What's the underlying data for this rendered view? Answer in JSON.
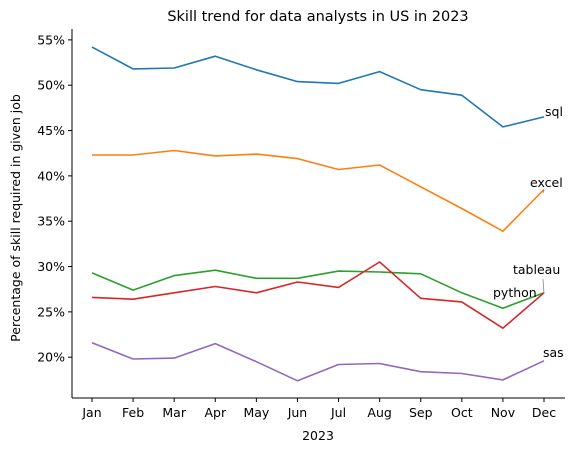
{
  "chart_data": {
    "type": "line",
    "title": "Skill trend for data analysts in US in 2023",
    "xlabel": "2023",
    "ylabel": "Percentage of skill required in given job",
    "categories": [
      "Jan",
      "Feb",
      "Mar",
      "Apr",
      "May",
      "Jun",
      "Jul",
      "Aug",
      "Sep",
      "Oct",
      "Nov",
      "Dec"
    ],
    "ylim": [
      15.5,
      56.2
    ],
    "yticks": [
      20,
      25,
      30,
      35,
      40,
      45,
      50,
      55
    ],
    "ytick_labels": [
      "20%",
      "25%",
      "30%",
      "35%",
      "40%",
      "45%",
      "50%",
      "55%"
    ],
    "grid": false,
    "legend": "none",
    "series": [
      {
        "name": "sql",
        "color": "#1f77b4",
        "values": [
          54.2,
          51.8,
          51.9,
          53.2,
          51.7,
          50.4,
          50.2,
          51.5,
          49.5,
          48.9,
          45.4,
          46.5
        ]
      },
      {
        "name": "excel",
        "color": "#ff7f0e",
        "values": [
          42.3,
          42.3,
          42.8,
          42.2,
          42.4,
          41.9,
          40.7,
          41.2,
          38.8,
          36.4,
          33.9,
          38.5
        ]
      },
      {
        "name": "tableau",
        "color": "#2ca02c",
        "values": [
          29.3,
          27.4,
          29.0,
          29.6,
          28.7,
          28.7,
          29.5,
          29.4,
          29.2,
          27.1,
          25.4,
          27.1
        ]
      },
      {
        "name": "python",
        "color": "#d62728",
        "values": [
          26.6,
          26.4,
          27.1,
          27.8,
          27.1,
          28.3,
          27.7,
          30.5,
          26.5,
          26.1,
          23.2,
          27.1
        ]
      },
      {
        "name": "sas",
        "color": "#9467bd",
        "values": [
          21.6,
          19.8,
          19.9,
          21.5,
          19.5,
          17.4,
          19.2,
          19.3,
          18.4,
          18.2,
          17.5,
          19.6
        ]
      }
    ]
  }
}
